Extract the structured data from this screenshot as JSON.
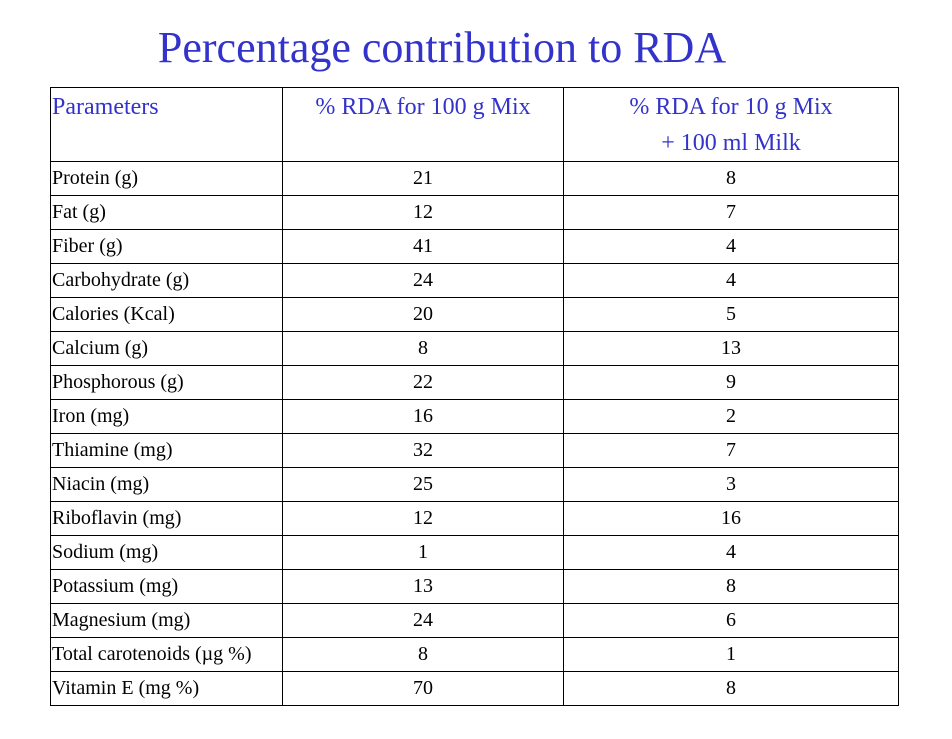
{
  "title": "Percentage contribution to RDA",
  "table": {
    "headers": {
      "col1": "Parameters",
      "col2": "% RDA for 100 g Mix",
      "col3_line1": "% RDA for 10 g Mix",
      "col3_line2": "+ 100 ml Milk"
    },
    "rows": [
      {
        "parameter": "Protein (g)",
        "mix100": "21",
        "mix10_milk": "8"
      },
      {
        "parameter": "Fat (g)",
        "mix100": "12",
        "mix10_milk": "7"
      },
      {
        "parameter": "Fiber (g)",
        "mix100": "41",
        "mix10_milk": "4"
      },
      {
        "parameter": "Carbohydrate (g)",
        "mix100": "24",
        "mix10_milk": "4"
      },
      {
        "parameter": "Calories (Kcal)",
        "mix100": "20",
        "mix10_milk": "5"
      },
      {
        "parameter": "Calcium (g)",
        "mix100": "8",
        "mix10_milk": "13"
      },
      {
        "parameter": "Phosphorous (g)",
        "mix100": "22",
        "mix10_milk": "9"
      },
      {
        "parameter": "Iron (mg)",
        "mix100": "16",
        "mix10_milk": "2"
      },
      {
        "parameter": "Thiamine (mg)",
        "mix100": "32",
        "mix10_milk": "7"
      },
      {
        "parameter": "Niacin (mg)",
        "mix100": "25",
        "mix10_milk": "3"
      },
      {
        "parameter": "Riboflavin (mg)",
        "mix100": "12",
        "mix10_milk": "16"
      },
      {
        "parameter": "Sodium (mg)",
        "mix100": "1",
        "mix10_milk": "4"
      },
      {
        "parameter": "Potassium (mg)",
        "mix100": "13",
        "mix10_milk": "8"
      },
      {
        "parameter": "Magnesium (mg)",
        "mix100": "24",
        "mix10_milk": "6"
      },
      {
        "parameter": "Total carotenoids (µg %)",
        "mix100": "8",
        "mix10_milk": "1"
      },
      {
        "parameter": "Vitamin E (mg %)",
        "mix100": "70",
        "mix10_milk": "8"
      }
    ]
  },
  "colors": {
    "heading": "#3333cc",
    "text": "#000000",
    "border": "#000000",
    "background": "#ffffff"
  }
}
